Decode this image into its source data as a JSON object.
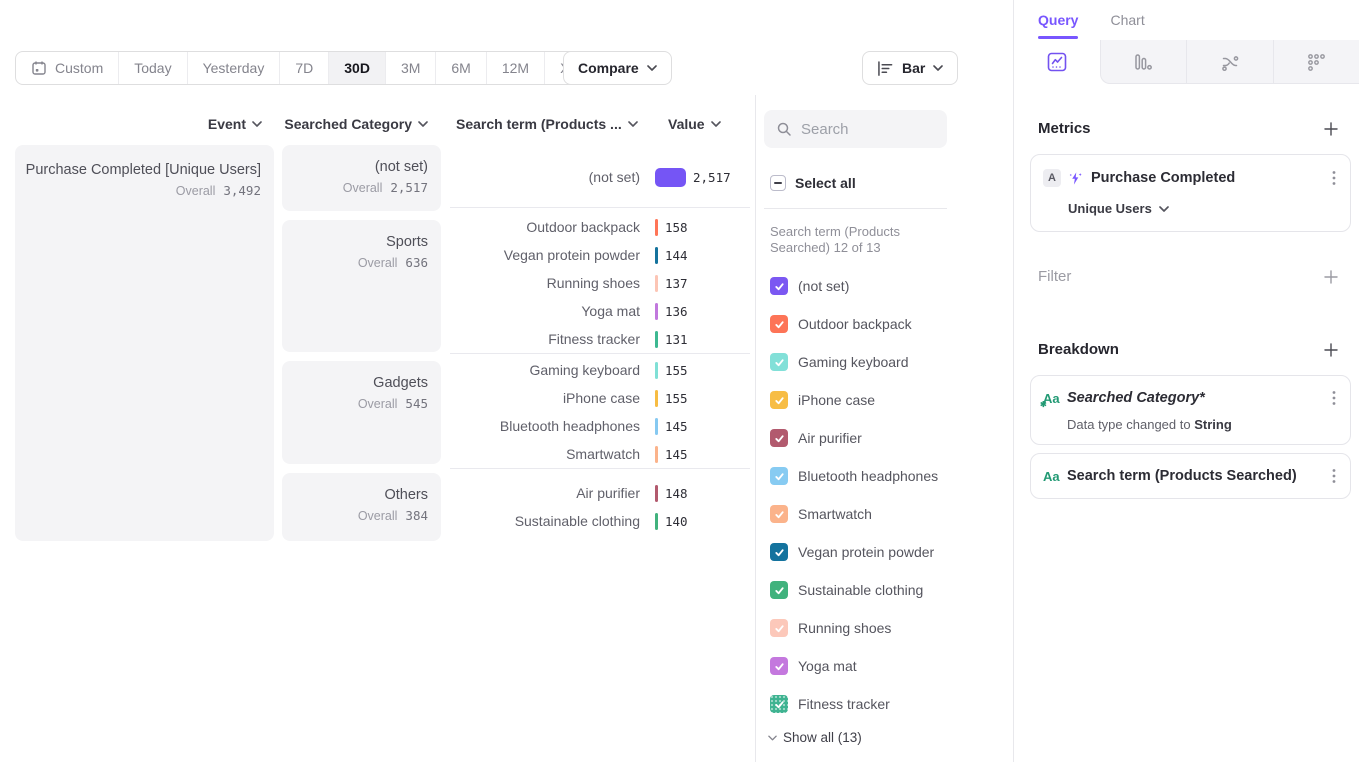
{
  "toolbar": {
    "ranges": [
      {
        "label": "Custom",
        "calendar_icon": true
      },
      {
        "label": "Today"
      },
      {
        "label": "Yesterday"
      },
      {
        "label": "7D"
      },
      {
        "label": "30D",
        "active": true
      },
      {
        "label": "3M"
      },
      {
        "label": "6M"
      },
      {
        "label": "12M"
      },
      {
        "label": "XTD",
        "chevron": true
      }
    ],
    "compare_label": "Compare",
    "chart_type_label": "Bar"
  },
  "table": {
    "headers": {
      "event": "Event",
      "category": "Searched Category",
      "term": "Search term (Products ...",
      "value": "Value"
    },
    "overall_label": "Overall",
    "event": {
      "name": "Purchase Completed [Unique Users]",
      "overall": "3,492"
    },
    "max_value": 2517,
    "groups": [
      {
        "category": "(not set)",
        "overall": "2,517",
        "rows": [
          {
            "label": "(not set)",
            "value": "2,517",
            "num": 2517,
            "color": "#7555f5"
          }
        ]
      },
      {
        "category": "Sports",
        "overall": "636",
        "rows": [
          {
            "label": "Outdoor backpack",
            "value": "158",
            "num": 158,
            "color": "#ff7557"
          },
          {
            "label": "Vegan protein powder",
            "value": "144",
            "num": 144,
            "color": "#15739d"
          },
          {
            "label": "Running shoes",
            "value": "137",
            "num": 137,
            "color": "#fcc5b5"
          },
          {
            "label": "Yoga mat",
            "value": "136",
            "num": 136,
            "color": "#c178dd"
          },
          {
            "label": "Fitness tracker",
            "value": "131",
            "num": 131,
            "color": "#3db891"
          }
        ]
      },
      {
        "category": "Gadgets",
        "overall": "545",
        "rows": [
          {
            "label": "Gaming keyboard",
            "value": "155",
            "num": 155,
            "color": "#80e0d6"
          },
          {
            "label": "iPhone case",
            "value": "155",
            "num": 155,
            "color": "#f7bc43"
          },
          {
            "label": "Bluetooth headphones",
            "value": "145",
            "num": 145,
            "color": "#86c9f1"
          },
          {
            "label": "Smartwatch",
            "value": "145",
            "num": 145,
            "color": "#fbb38b"
          }
        ]
      },
      {
        "category": "Others",
        "overall": "384",
        "rows": [
          {
            "label": "Air purifier",
            "value": "148",
            "num": 148,
            "color": "#b25a6e"
          },
          {
            "label": "Sustainable clothing",
            "value": "140",
            "num": 140,
            "color": "#41b27d"
          }
        ]
      }
    ]
  },
  "legend": {
    "search_placeholder": "Search",
    "select_all_label": "Select all",
    "list_label": "Search term (Products Searched) 12 of 13",
    "show_all_label": "Show all (13)",
    "items": [
      {
        "label": "(not set)",
        "color": "#7b58f2"
      },
      {
        "label": "Outdoor backpack",
        "color": "#fd7457"
      },
      {
        "label": "Gaming keyboard",
        "color": "#82e0d8"
      },
      {
        "label": "iPhone case",
        "color": "#f7bd45"
      },
      {
        "label": "Air purifier",
        "color": "#b25a6e"
      },
      {
        "label": "Bluetooth headphones",
        "color": "#87cbf2"
      },
      {
        "label": "Smartwatch",
        "color": "#fbb38b"
      },
      {
        "label": "Vegan protein powder",
        "color": "#14739e"
      },
      {
        "label": "Sustainable clothing",
        "color": "#41b27d"
      },
      {
        "label": "Running shoes",
        "color": "#fcc8ba"
      },
      {
        "label": "Yoga mat",
        "color": "#c478de"
      },
      {
        "label": "Fitness tracker",
        "color": "#3eb391",
        "textured": true
      }
    ]
  },
  "query_panel": {
    "tabs": [
      {
        "label": "Query",
        "active": true
      },
      {
        "label": "Chart"
      }
    ],
    "metrics": {
      "heading": "Metrics",
      "card": {
        "badge": "A",
        "name": "Purchase Completed",
        "measure": "Unique Users"
      }
    },
    "filter": {
      "heading": "Filter"
    },
    "breakdown": {
      "heading": "Breakdown",
      "items": [
        {
          "icon_label": "Aa",
          "label": "Searched Category*",
          "italic": true,
          "modified": true,
          "note_prefix": "Data type changed to ",
          "note_bold": "String"
        },
        {
          "icon_label": "Aa",
          "label": "Search term (Products Searched)"
        }
      ]
    }
  }
}
